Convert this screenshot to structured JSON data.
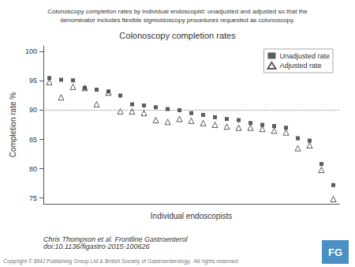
{
  "chart_data": {
    "type": "scatter",
    "title": "Colonoscopy completion rates by individual endoscopist: unadjusted and adjusted so that the\ndenominator includes flexible sigmoidoscopy procedures requested as colonoscopy.",
    "subtitle": "Colonoscopy completion rates",
    "x_label": "Individual endoscopists",
    "y_label": "Completion rate %",
    "categories": [
      null,
      null,
      null,
      null,
      null,
      null,
      null,
      null,
      null,
      null,
      null,
      null,
      null,
      null,
      null,
      null,
      null,
      null,
      null,
      null,
      null,
      null,
      null,
      null,
      null
    ],
    "series": [
      {
        "name": "Unadjusted rate",
        "color": "#333333",
        "marker": "square",
        "values": [
          95.5,
          95.2,
          95.1,
          93.8,
          93.5,
          93.2,
          92.5,
          91.0,
          90.8,
          90.5,
          90.2,
          90.0,
          89.5,
          89.2,
          88.8,
          88.5,
          88.3,
          87.8,
          87.5,
          87.3,
          87.0,
          85.2,
          84.8,
          80.8,
          77.2
        ]
      },
      {
        "name": "Adjusted rate",
        "color": "#333333",
        "marker": "triangle-open",
        "values": [
          94.8,
          92.2,
          94.0,
          93.8,
          91.0,
          93.0,
          89.8,
          89.8,
          89.5,
          88.3,
          88.0,
          88.5,
          88.2,
          87.8,
          87.5,
          87.2,
          87.0,
          87.0,
          86.8,
          86.5,
          86.2,
          83.5,
          84.0,
          79.8,
          74.8
        ]
      }
    ],
    "ylim": [
      74,
      101
    ],
    "yticks": [
      75,
      80,
      85,
      90,
      95,
      100
    ],
    "hline": 90,
    "grid": false,
    "legend": "upper right",
    "tick_labels": "y",
    "annotations": [
      {
        "text": "Chris Thompson et al. Frontline Gastroenterol\ndoi:10.1136/figastro-2015-100626"
      },
      {
        "text": "Copyright © BMJ Publishing Group Ltd & British Society of Gastroenterology.  All rights reserved"
      },
      {
        "text": "FG",
        "color": "#4a90c4"
      }
    ]
  }
}
